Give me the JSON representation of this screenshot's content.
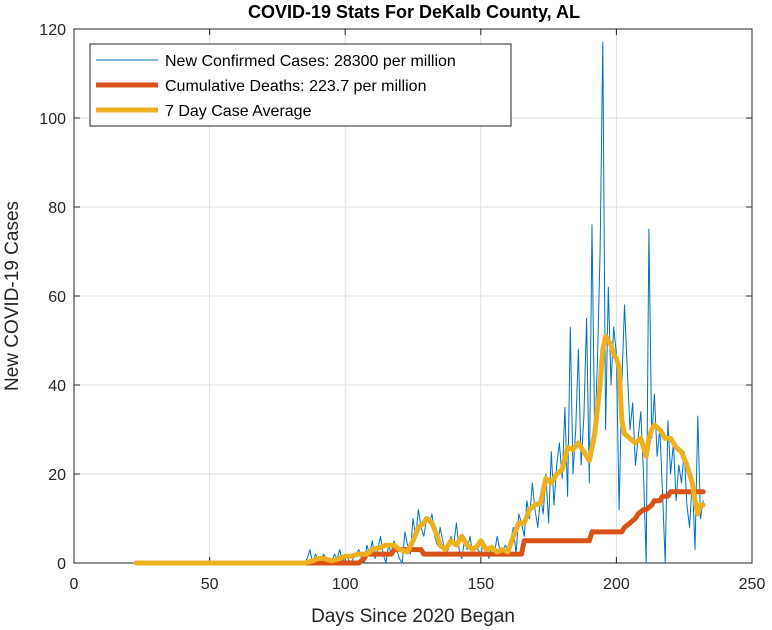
{
  "chart_data": {
    "type": "line",
    "title": "COVID-19 Stats For DeKalb County, AL",
    "xlabel": "Days Since 2020 Began",
    "ylabel": "New COVID-19 Cases",
    "xlim": [
      0,
      250
    ],
    "ylim": [
      0,
      120
    ],
    "xticks": [
      0,
      50,
      100,
      150,
      200,
      250
    ],
    "yticks": [
      0,
      20,
      40,
      60,
      80,
      100,
      120
    ],
    "grid": true,
    "legend_position": "top-left",
    "series": [
      {
        "name": "New Confirmed Cases: 28300 per million",
        "color": "#0072BD",
        "x": [
          23,
          30,
          40,
          50,
          60,
          70,
          80,
          85,
          86,
          87,
          88,
          89,
          90,
          91,
          92,
          93,
          94,
          95,
          96,
          97,
          98,
          99,
          100,
          101,
          102,
          103,
          104,
          105,
          106,
          107,
          108,
          109,
          110,
          111,
          112,
          113,
          114,
          115,
          116,
          117,
          118,
          119,
          120,
          121,
          122,
          123,
          124,
          125,
          126,
          127,
          128,
          129,
          130,
          131,
          132,
          133,
          134,
          135,
          136,
          137,
          138,
          139,
          140,
          141,
          142,
          143,
          144,
          145,
          146,
          147,
          148,
          149,
          150,
          151,
          152,
          153,
          154,
          155,
          156,
          157,
          158,
          159,
          160,
          161,
          162,
          163,
          164,
          165,
          166,
          167,
          168,
          169,
          170,
          171,
          172,
          173,
          174,
          175,
          176,
          177,
          178,
          179,
          180,
          181,
          182,
          183,
          184,
          185,
          186,
          187,
          188,
          189,
          190,
          191,
          192,
          193,
          194,
          195,
          196,
          197,
          198,
          199,
          200,
          201,
          202,
          203,
          204,
          205,
          206,
          207,
          208,
          209,
          210,
          211,
          212,
          213,
          214,
          215,
          216,
          217,
          218,
          219,
          220,
          221,
          222,
          223,
          224,
          225,
          226,
          227,
          228,
          229,
          230,
          231,
          232
        ],
        "values": [
          0,
          0,
          0,
          0,
          0,
          0,
          0,
          0,
          1,
          3,
          0,
          2,
          1,
          0,
          2,
          1,
          0,
          0,
          2,
          1,
          3,
          0,
          2,
          1,
          0,
          1,
          2,
          3,
          1,
          0,
          4,
          2,
          5,
          1,
          3,
          6,
          2,
          0,
          4,
          2,
          5,
          3,
          1,
          0,
          7,
          4,
          2,
          10,
          6,
          12,
          8,
          6,
          10,
          9,
          11,
          6,
          4,
          8,
          5,
          2,
          3,
          6,
          4,
          9,
          3,
          1,
          5,
          3,
          6,
          2,
          4,
          3,
          2,
          5,
          3,
          1,
          4,
          2,
          6,
          3,
          2,
          4,
          3,
          5,
          8,
          2,
          11,
          9,
          6,
          14,
          10,
          18,
          12,
          8,
          15,
          11,
          20,
          9,
          25,
          13,
          22,
          27,
          19,
          35,
          15,
          53,
          20,
          30,
          48,
          22,
          33,
          55,
          18,
          76,
          28,
          45,
          70,
          117,
          30,
          62,
          40,
          53,
          47,
          12,
          40,
          58,
          44,
          30,
          36,
          22,
          28,
          34,
          20,
          0,
          75,
          28,
          38,
          24,
          30,
          16,
          0,
          32,
          20,
          27,
          14,
          22,
          18,
          25,
          13,
          8,
          19,
          3,
          33,
          10,
          14
        ]
      },
      {
        "name": "Cumulative Deaths: 223.7 per million",
        "color": "#D95319",
        "x": [
          23,
          105,
          107,
          108,
          117,
          118,
          128,
          129,
          165,
          166,
          190,
          191,
          202,
          203,
          205,
          207,
          208,
          210,
          211,
          213,
          214,
          216,
          217,
          219,
          220,
          222,
          223,
          231,
          232
        ],
        "values": [
          0,
          0,
          1,
          2,
          2,
          3,
          3,
          2,
          2,
          5,
          5,
          7,
          7,
          8,
          9,
          10,
          11,
          12,
          12,
          13,
          14,
          14,
          15,
          15,
          16,
          16,
          16,
          16,
          16
        ]
      },
      {
        "name": "7 Day Case Average",
        "color": "#EDB120",
        "x": [
          23,
          40,
          60,
          80,
          85,
          88,
          90,
          92,
          95,
          98,
          100,
          102,
          105,
          108,
          110,
          113,
          115,
          118,
          120,
          123,
          125,
          127,
          129,
          130,
          131,
          132,
          134,
          135,
          137,
          139,
          141,
          143,
          145,
          147,
          149,
          150,
          152,
          154,
          156,
          158,
          160,
          162,
          164,
          166,
          168,
          170,
          172,
          174,
          176,
          178,
          180,
          182,
          184,
          186,
          188,
          190,
          192,
          194,
          195,
          196,
          197,
          198,
          199,
          200,
          201,
          202,
          203,
          205,
          207,
          209,
          211,
          212,
          213,
          214,
          216,
          218,
          220,
          222,
          224,
          226,
          227,
          228,
          229,
          230,
          231,
          232
        ],
        "values": [
          0,
          0,
          0,
          0,
          0,
          0.5,
          1,
          1,
          0.5,
          1,
          1.5,
          1.5,
          2,
          2,
          3,
          3.5,
          4,
          4,
          3,
          2.5,
          5,
          8,
          9,
          10,
          9.5,
          9,
          6,
          4,
          3,
          5,
          4,
          6,
          4,
          3,
          4,
          5,
          3,
          3.5,
          2.5,
          3,
          2.5,
          6,
          9,
          9,
          12,
          13,
          13.5,
          19,
          18,
          20,
          21,
          26,
          25.5,
          27,
          25,
          23,
          29,
          40,
          48,
          51,
          50,
          49,
          47,
          46,
          44,
          32,
          29,
          28,
          27,
          28,
          24,
          28,
          30,
          31,
          30,
          28,
          28,
          26,
          25,
          22,
          20,
          18,
          14,
          11,
          13,
          13
        ]
      }
    ]
  }
}
